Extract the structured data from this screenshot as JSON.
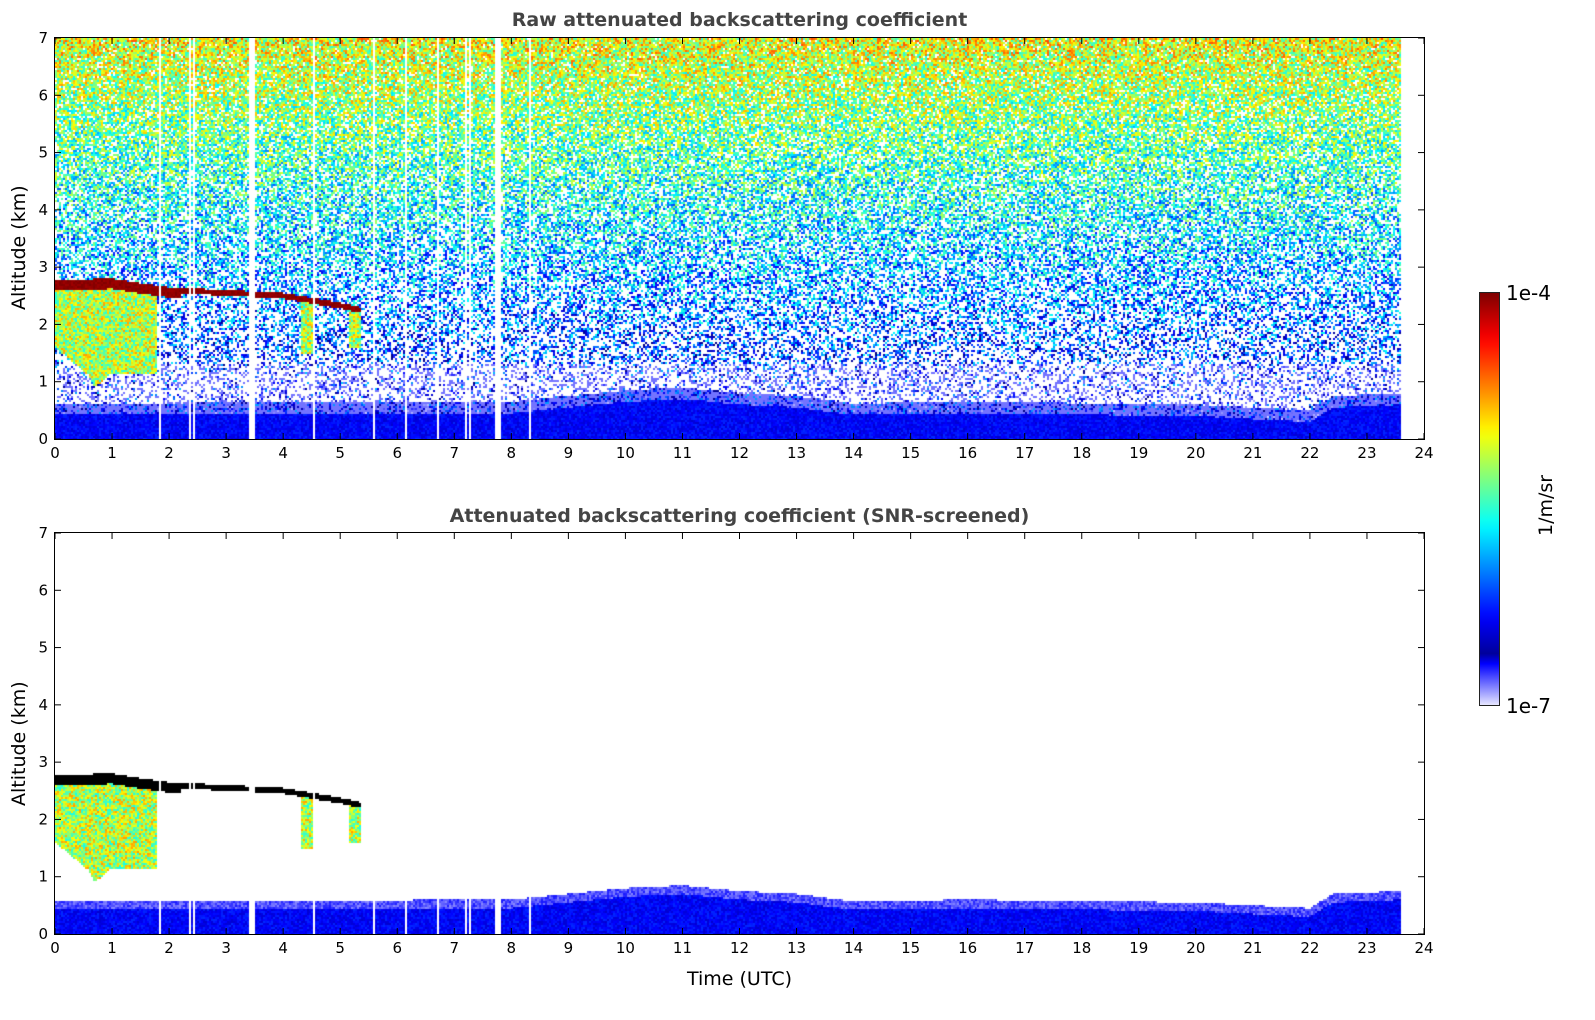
{
  "chart_data": [
    {
      "type": "heatmap",
      "title": "Raw attenuated backscattering coefficient",
      "xlabel": "",
      "ylabel": "Altitude (km)",
      "xlim": [
        0,
        24
      ],
      "ylim": [
        0,
        7
      ],
      "xticks": [
        0,
        1,
        2,
        3,
        4,
        5,
        6,
        7,
        8,
        9,
        10,
        11,
        12,
        13,
        14,
        15,
        16,
        17,
        18,
        19,
        20,
        21,
        22,
        23,
        24
      ],
      "yticks": [
        0,
        1,
        2,
        3,
        4,
        5,
        6,
        7
      ],
      "screened": false
    },
    {
      "type": "heatmap",
      "title": "Attenuated backscattering coefficient (SNR-screened)",
      "xlabel": "Time (UTC)",
      "ylabel": "Altitude (km)",
      "xlim": [
        0,
        24
      ],
      "ylim": [
        0,
        7
      ],
      "xticks": [
        0,
        1,
        2,
        3,
        4,
        5,
        6,
        7,
        8,
        9,
        10,
        11,
        12,
        13,
        14,
        15,
        16,
        17,
        18,
        19,
        20,
        21,
        22,
        23,
        24
      ],
      "yticks": [
        0,
        1,
        2,
        3,
        4,
        5,
        6,
        7
      ],
      "screened": true
    }
  ],
  "shared": {
    "data_end_hour": 23.6,
    "data_gaps_hours": [
      1.83,
      2.38,
      2.45,
      3.43,
      3.47,
      4.55,
      5.6,
      6.15,
      6.7,
      7.22,
      7.28,
      7.75,
      7.8,
      8.33
    ],
    "cloud_top_km": {
      "t": [
        0,
        1,
        1.5,
        2,
        3,
        4,
        4.4,
        5,
        5.35
      ],
      "z": [
        2.78,
        2.8,
        2.72,
        2.65,
        2.6,
        2.55,
        2.48,
        2.38,
        2.3
      ]
    },
    "virga_base_km": {
      "t": [
        0,
        0.6,
        0.7,
        1,
        1.8
      ],
      "z": [
        1.6,
        1.1,
        0.9,
        1.15,
        1.15
      ]
    },
    "boundary_layer_top_km": {
      "t": [
        0,
        8,
        9,
        10,
        11,
        12,
        13,
        14,
        16,
        20,
        22,
        22.4,
        23.6
      ],
      "z": [
        0.42,
        0.45,
        0.55,
        0.65,
        0.7,
        0.6,
        0.55,
        0.42,
        0.45,
        0.4,
        0.3,
        0.55,
        0.6
      ]
    }
  },
  "colorbar": {
    "label": "1/m/sr",
    "min_label": "1e-7",
    "max_label": "1e-4",
    "min": 1e-07,
    "max": 0.0001,
    "scale": "log"
  }
}
